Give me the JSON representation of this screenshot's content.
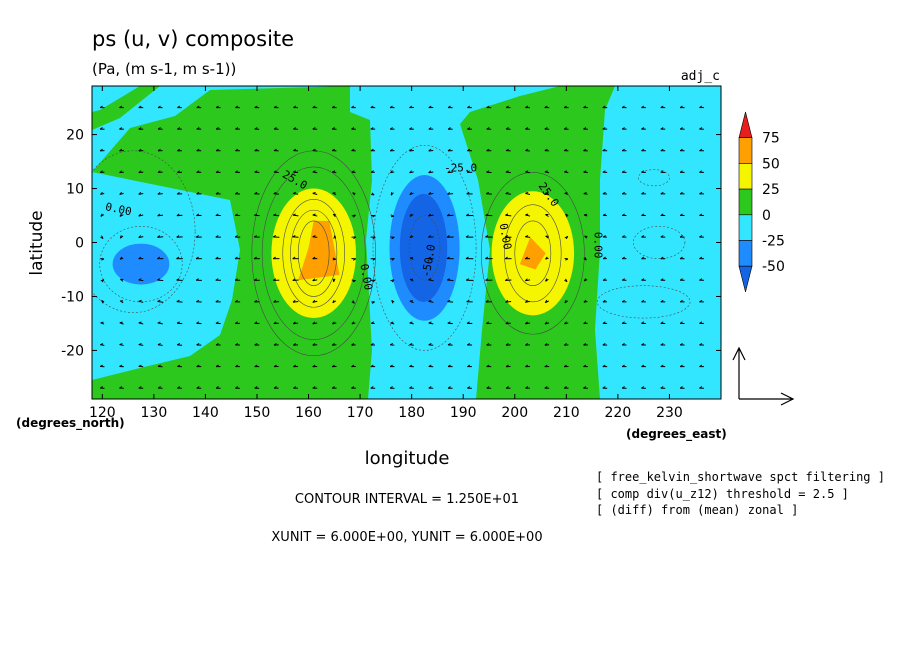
{
  "chart_data": {
    "type": "heatmap",
    "title": "ps (u, v) composite",
    "subtitle": "(Pa, (m s-1, m s-1))",
    "run_label": "adj_c",
    "xlabel": "longitude",
    "ylabel": "latitude",
    "x_unit_label": "(degrees_east)",
    "y_unit_label": "(degrees_north)",
    "xlim": [
      118,
      240
    ],
    "ylim": [
      -29,
      29
    ],
    "x_ticks": [
      120,
      130,
      140,
      150,
      160,
      170,
      180,
      190,
      200,
      210,
      220,
      230
    ],
    "y_ticks": [
      20,
      10,
      0,
      -10,
      -20
    ],
    "colorbar": {
      "levels": [
        "75",
        "50",
        "25",
        "0",
        "-25",
        "-50"
      ],
      "colors": [
        "#e61e1e",
        "#ffa000",
        "#f5f500",
        "#2cc81e",
        "#32e6ff",
        "#1e8cff",
        "#1464e6"
      ]
    },
    "contour_labels": [
      "0.00",
      "25.0",
      "-25.0",
      "-50.0",
      "0.00",
      "0.00",
      "25.0",
      "0.00"
    ],
    "features": [
      {
        "kind": "high",
        "lon": 162,
        "lat": -2,
        "peak": 55
      },
      {
        "kind": "low",
        "lon": 182,
        "lat": -1,
        "peak": -55
      },
      {
        "kind": "high",
        "lon": 203,
        "lat": -2,
        "peak": 55
      },
      {
        "kind": "low",
        "lon": 127,
        "lat": -4,
        "peak": -30
      }
    ],
    "wind_vector": {
      "xunit": "6.000E+00",
      "yunit": "6.000E+00"
    }
  },
  "contour_interval": "CONTOUR INTERVAL = 1.250E+01",
  "units_text": "XUNIT = 6.000E+00, YUNIT = 6.000E+00",
  "notes": [
    "[ free_kelvin_shortwave spct filtering ]",
    "[ comp div(u_z12) threshold = 2.5 ]",
    "[ (diff) from (mean) zonal ]"
  ]
}
